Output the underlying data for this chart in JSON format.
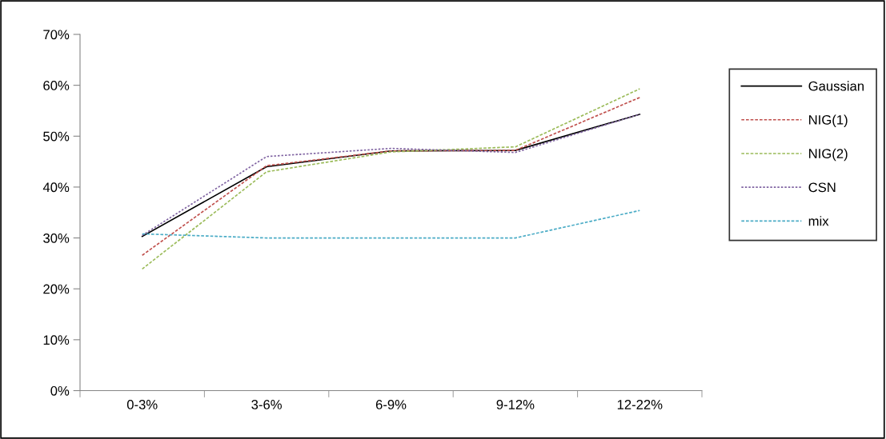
{
  "chart_data": {
    "type": "line",
    "categories": [
      "0-3%",
      "3-6%",
      "6-9%",
      "9-12%",
      "12-22%"
    ],
    "series": [
      {
        "name": "Gaussian",
        "color": "#000000",
        "line_style": "solid",
        "values": [
          30.3,
          44.0,
          47.1,
          47.2,
          54.3
        ]
      },
      {
        "name": "NIG(1)",
        "color": "#c0504d",
        "line_style": "dashed",
        "values": [
          26.6,
          44.2,
          47.1,
          47.2,
          57.6
        ]
      },
      {
        "name": "NIG(2)",
        "color": "#9bbb59",
        "line_style": "dashed",
        "values": [
          23.9,
          43.0,
          46.9,
          47.9,
          59.3
        ]
      },
      {
        "name": "CSN",
        "color": "#8064a2",
        "line_style": "dotted",
        "values": [
          30.5,
          46.0,
          47.6,
          46.8,
          54.3
        ]
      },
      {
        "name": "mix",
        "color": "#4bacc6",
        "line_style": "dashed",
        "values": [
          30.8,
          30.0,
          30.0,
          30.0,
          35.4
        ]
      }
    ],
    "ylim": [
      0,
      70
    ],
    "yticks": [
      {
        "value": 0,
        "label": "0%"
      },
      {
        "value": 10,
        "label": "10%"
      },
      {
        "value": 20,
        "label": "20%"
      },
      {
        "value": 30,
        "label": "30%"
      },
      {
        "value": 40,
        "label": "40%"
      },
      {
        "value": 50,
        "label": "50%"
      },
      {
        "value": 60,
        "label": "60%"
      },
      {
        "value": 70,
        "label": "70%"
      }
    ],
    "grid": false,
    "legend": "right",
    "marker": "none"
  }
}
